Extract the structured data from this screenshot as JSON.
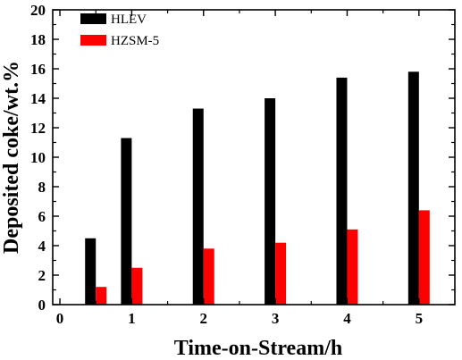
{
  "chart_data": {
    "type": "bar",
    "x": [
      0.5,
      1,
      2,
      3,
      4,
      5
    ],
    "series": [
      {
        "name": "HLEV",
        "color": "#000000",
        "values": [
          4.5,
          11.3,
          13.3,
          14.0,
          15.4,
          15.8
        ]
      },
      {
        "name": "HZSM-5",
        "color": "#ff0000",
        "values": [
          1.2,
          2.5,
          3.8,
          4.2,
          5.1,
          6.4
        ]
      }
    ],
    "xlabel": "Time-on-Stream/h",
    "ylabel": "Deposited coke/wt.%",
    "xlim": [
      -0.1,
      5.5
    ],
    "ylim": [
      0,
      20
    ],
    "xticks": [
      0,
      1,
      2,
      3,
      4,
      5
    ],
    "yticks": [
      0,
      2,
      4,
      6,
      8,
      10,
      12,
      14,
      16,
      18,
      20
    ],
    "grid": false,
    "legend_position": "top-left"
  }
}
